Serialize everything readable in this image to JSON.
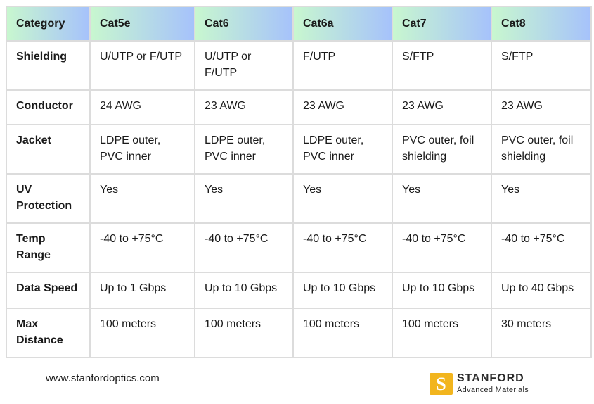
{
  "table": {
    "headers": [
      "Category",
      "Cat5e",
      "Cat6",
      "Cat6a",
      "Cat7",
      "Cat8"
    ],
    "rows": [
      {
        "label": "Shielding",
        "values": [
          "U/UTP or F/UTP",
          "U/UTP or F/UTP",
          "F/UTP",
          "S/FTP",
          "S/FTP"
        ]
      },
      {
        "label": "Conductor",
        "values": [
          "24 AWG",
          "23 AWG",
          "23 AWG",
          "23 AWG",
          "23 AWG"
        ]
      },
      {
        "label": "Jacket",
        "values": [
          "LDPE outer, PVC inner",
          "LDPE outer, PVC inner",
          "LDPE outer, PVC inner",
          "PVC outer, foil shielding",
          "PVC outer, foil shielding"
        ]
      },
      {
        "label": "UV Protection",
        "values": [
          "Yes",
          "Yes",
          "Yes",
          "Yes",
          "Yes"
        ]
      },
      {
        "label": "Temp Range",
        "values": [
          "-40 to +75°C",
          "-40 to +75°C",
          "-40 to +75°C",
          "-40 to +75°C",
          "-40 to +75°C"
        ]
      },
      {
        "label": "Data Speed",
        "values": [
          "Up to 1 Gbps",
          "Up to 10 Gbps",
          "Up to 10 Gbps",
          "Up to 10 Gbps",
          "Up to 40 Gbps"
        ]
      },
      {
        "label": "Max Distance",
        "values": [
          "100 meters",
          "100 meters",
          "100 meters",
          "100 meters",
          "30 meters"
        ]
      }
    ]
  },
  "footer": {
    "website": "www.stanfordoptics.com",
    "logo_letter": "S",
    "logo_name": "STANFORD",
    "logo_subtitle": "Advanced Materials"
  },
  "colors": {
    "header_gradient_start": "#c8f7cf",
    "header_gradient_end": "#a6c2fb",
    "logo_accent": "#f2b51e",
    "grid": "#dcdcdc"
  }
}
